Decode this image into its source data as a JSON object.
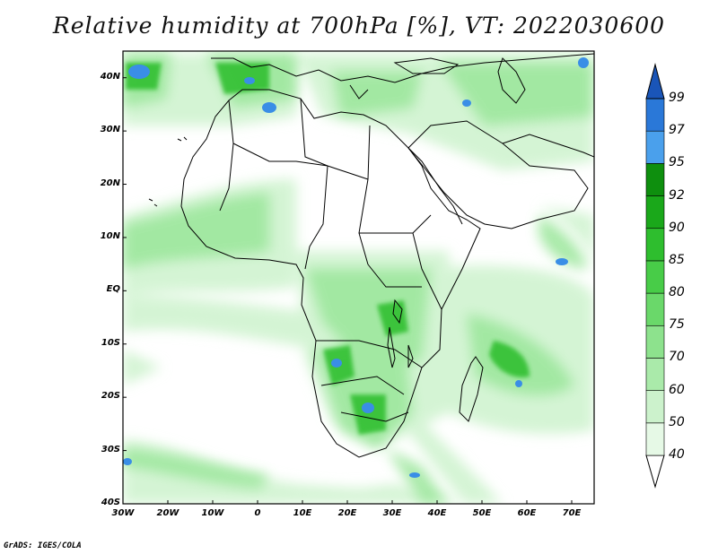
{
  "title": "Relative humidity at 700hPa [%], VT: 2022030600",
  "credit": "GrADS: IGES/COLA",
  "map": {
    "extent": {
      "lon": [
        -30,
        75
      ],
      "lat": [
        -40,
        45
      ]
    },
    "lat_labels": [
      {
        "lat": 40,
        "text": "40N"
      },
      {
        "lat": 30,
        "text": "30N"
      },
      {
        "lat": 20,
        "text": "20N"
      },
      {
        "lat": 10,
        "text": "10N"
      },
      {
        "lat": 0,
        "text": "EQ"
      },
      {
        "lat": -10,
        "text": "10S"
      },
      {
        "lat": -20,
        "text": "20S"
      },
      {
        "lat": -30,
        "text": "30S"
      },
      {
        "lat": -40,
        "text": "40S"
      }
    ],
    "lon_labels": [
      {
        "lon": -30,
        "text": "30W"
      },
      {
        "lon": -20,
        "text": "20W"
      },
      {
        "lon": -10,
        "text": "10W"
      },
      {
        "lon": 0,
        "text": "0"
      },
      {
        "lon": 10,
        "text": "10E"
      },
      {
        "lon": 20,
        "text": "20E"
      },
      {
        "lon": 30,
        "text": "30E"
      },
      {
        "lon": 40,
        "text": "40E"
      },
      {
        "lon": 50,
        "text": "50E"
      },
      {
        "lon": 60,
        "text": "60E"
      },
      {
        "lon": 70,
        "text": "70E"
      }
    ]
  },
  "legend": {
    "levels": [
      "40",
      "50",
      "60",
      "70",
      "75",
      "80",
      "85",
      "90",
      "92",
      "95",
      "97",
      "99"
    ],
    "colors": [
      "#ffffff",
      "#e6f9e6",
      "#ccf2cc",
      "#aaeaaa",
      "#8de28d",
      "#6ad86a",
      "#48cc48",
      "#2ebe2e",
      "#1aa81a",
      "#0e8f0e",
      "#4aa0ec",
      "#2a78d8",
      "#1a55b8"
    ]
  }
}
